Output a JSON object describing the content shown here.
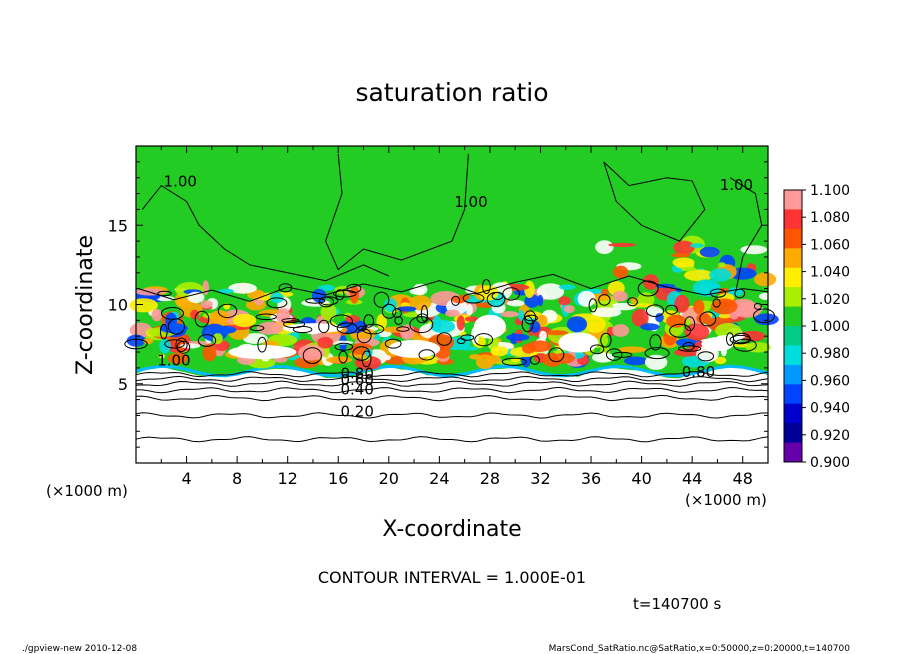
{
  "chart_data": {
    "type": "heatmap",
    "title": "saturation ratio",
    "xlabel": "X-coordinate",
    "ylabel": "Z-coordinate",
    "x_unit": "(×1000 m)",
    "z_unit": "(×1000 m)",
    "xlim": [
      0,
      50
    ],
    "ylim": [
      0,
      20
    ],
    "x_ticks": [
      "4",
      "8",
      "12",
      "16",
      "20",
      "24",
      "28",
      "32",
      "36",
      "40",
      "44",
      "48"
    ],
    "y_ticks": [
      "5",
      "10",
      "15"
    ],
    "colorbar_labels": [
      "1.100",
      "1.080",
      "1.060",
      "1.040",
      "1.020",
      "1.000",
      "0.980",
      "0.960",
      "0.940",
      "0.920",
      "0.900"
    ],
    "colorbar_colors": [
      "#ff9999",
      "#ff3333",
      "#ff5500",
      "#ffaa00",
      "#ffee00",
      "#aaee00",
      "#22cc22",
      "#00cc88",
      "#00dddd",
      "#0099ff",
      "#0044ff",
      "#0000cc",
      "#000099",
      "#6600aa"
    ],
    "contour_labels": [
      {
        "text": "1.00",
        "x": 3.5,
        "z": 17.5
      },
      {
        "text": "1.00",
        "x": 26.5,
        "z": 16.2
      },
      {
        "text": "1.00",
        "x": 47.5,
        "z": 17.3
      },
      {
        "text": "1.00",
        "x": 3.0,
        "z": 6.2
      },
      {
        "text": "0.80",
        "x": 17.5,
        "z": 5.4
      },
      {
        "text": "0.60",
        "x": 17.5,
        "z": 5.0
      },
      {
        "text": "0.40",
        "x": 17.5,
        "z": 4.4
      },
      {
        "text": "0.20",
        "x": 17.5,
        "z": 3.0
      },
      {
        "text": "0.80",
        "x": 44.5,
        "z": 5.5
      }
    ],
    "contour_interval_text": "CONTOUR INTERVAL = 1.000E-01",
    "time_text": "t=140700 s",
    "grid": false,
    "legend": "colorbar-right"
  },
  "footer": {
    "left": "./gpview-new  2010-12-08",
    "right": "MarsCond_SatRatio.nc@SatRatio,x=0:50000,z=0:20000,t=140700"
  },
  "colors": {
    "field": "#22cc22",
    "frame": "#000000"
  }
}
